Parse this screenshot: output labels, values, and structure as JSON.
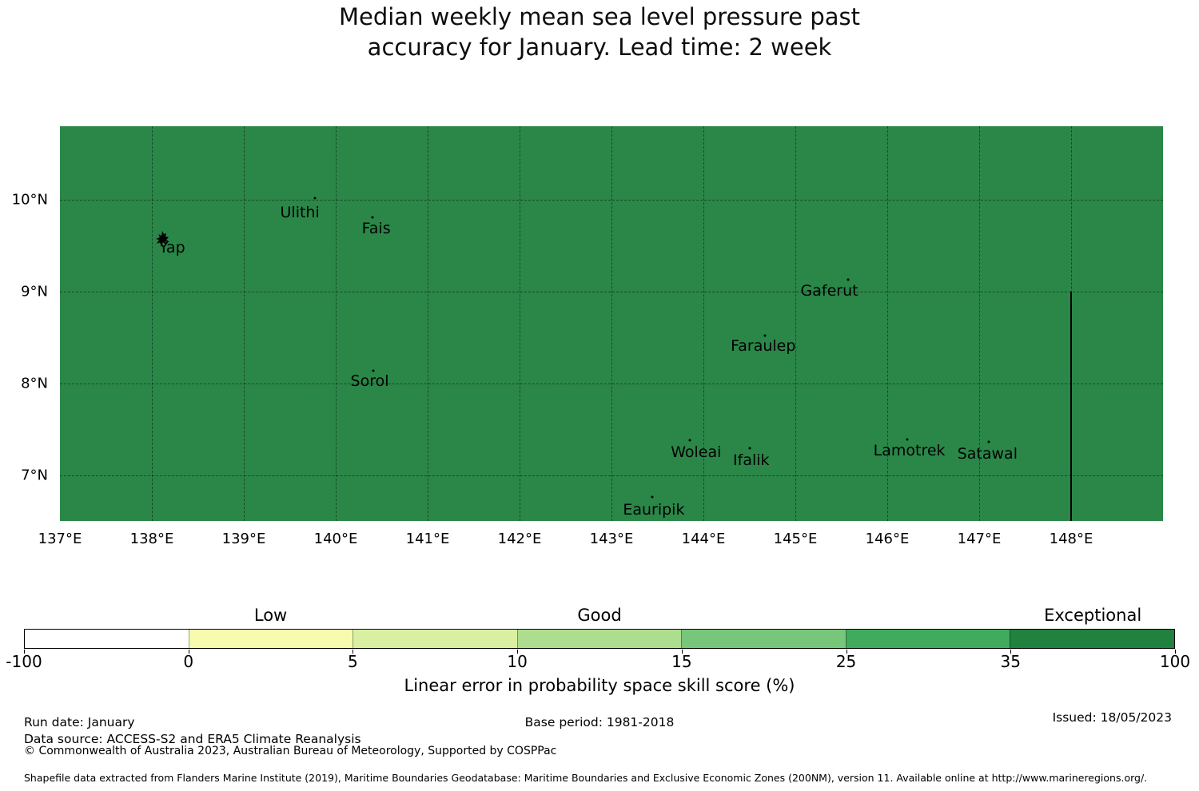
{
  "title": {
    "line1": "Median weekly mean sea level pressure past",
    "line2": "accuracy for January. Lead time: 2 week"
  },
  "chart_data": {
    "type": "heatmap",
    "title": "Median weekly mean sea level pressure past accuracy for January. Lead time: 2 week",
    "geo": {
      "lon_min": 137,
      "lon_max": 149,
      "lat_min": 6.5,
      "lat_max": 10.8
    },
    "x_axis": {
      "tick_lons": [
        137,
        138,
        139,
        140,
        141,
        142,
        143,
        144,
        145,
        146,
        147,
        148
      ],
      "suffix": "°E",
      "grid": true
    },
    "y_axis": {
      "tick_lats": [
        7,
        8,
        9,
        10
      ],
      "suffix": "°N",
      "grid": true
    },
    "region": {
      "fill_color": "#2a8748",
      "meaning": "skill score in Exceptional band (35-100)"
    },
    "islands": [
      {
        "name": "Yap",
        "marker": {
          "lon": 138.13,
          "lat": 9.57
        },
        "label": {
          "lon": 138.22,
          "lat": 9.48
        },
        "shape": true
      },
      {
        "name": "Ulithi",
        "marker": {
          "lon": 139.77,
          "lat": 10.02
        },
        "label": {
          "lon": 139.61,
          "lat": 9.86
        }
      },
      {
        "name": "Fais",
        "marker": {
          "lon": 140.4,
          "lat": 9.81
        },
        "label": {
          "lon": 140.44,
          "lat": 9.69
        }
      },
      {
        "name": "Sorol",
        "marker": {
          "lon": 140.41,
          "lat": 8.14
        },
        "label": {
          "lon": 140.37,
          "lat": 8.02
        }
      },
      {
        "name": "Gaferut",
        "marker": {
          "lon": 145.57,
          "lat": 9.13
        },
        "label": {
          "lon": 145.37,
          "lat": 9.01
        }
      },
      {
        "name": "Faraulep",
        "marker": {
          "lon": 144.67,
          "lat": 8.52
        },
        "label": {
          "lon": 144.65,
          "lat": 8.41
        }
      },
      {
        "name": "Woleai",
        "marker": {
          "lon": 143.85,
          "lat": 7.38
        },
        "label": {
          "lon": 143.92,
          "lat": 7.25
        }
      },
      {
        "name": "Ifalik",
        "marker": {
          "lon": 144.5,
          "lat": 7.29
        },
        "label": {
          "lon": 144.52,
          "lat": 7.16
        }
      },
      {
        "name": "Lamotrek",
        "marker": {
          "lon": 146.22,
          "lat": 7.39
        },
        "label": {
          "lon": 146.24,
          "lat": 7.27
        }
      },
      {
        "name": "Satawal",
        "marker": {
          "lon": 147.1,
          "lat": 7.36
        },
        "label": {
          "lon": 147.09,
          "lat": 7.23
        }
      },
      {
        "name": "Eauripik",
        "marker": {
          "lon": 143.44,
          "lat": 6.76
        },
        "label": {
          "lon": 143.46,
          "lat": 6.62
        }
      }
    ],
    "eez_boundary": {
      "lon": 148,
      "lat_top": 9.0,
      "lat_bottom": 6.5
    },
    "colorbar": {
      "boundaries": [
        -100,
        0,
        5,
        10,
        15,
        25,
        35,
        100
      ],
      "tick_labels": [
        "-100",
        "0",
        "5",
        "10",
        "15",
        "25",
        "35",
        "100"
      ],
      "segment_colors": [
        "#ffffff",
        "#f7fbae",
        "#d9f0a3",
        "#addd8e",
        "#78c679",
        "#41ab5d",
        "#21813f"
      ],
      "category_labels": [
        {
          "text": "Low",
          "segment": 1
        },
        {
          "text": "Good",
          "segment": 3
        },
        {
          "text": "Exceptional",
          "segment": 6
        }
      ],
      "label": "Linear error in probability space skill score (%)"
    }
  },
  "caption": "Linear error in probability space skill score (%)",
  "footer": {
    "run_date": "Run date: January",
    "base_period": "Base period: 1981-2018",
    "issued": "Issued: 18/05/2023",
    "data_source": "Data source: ACCESS-S2 and ERA5 Climate Reanalysis",
    "copyright": "© Commonwealth of Australia 2023, Australian Bureau of Meteorology, Supported by COSPPac",
    "shapefile_note": "Shapefile data extracted from Flanders Marine Institute (2019), Maritime Boundaries Geodatabase: Maritime Boundaries and Exclusive Economic Zones (200NM), version 11. Available online at http://www.marineregions.org/."
  }
}
